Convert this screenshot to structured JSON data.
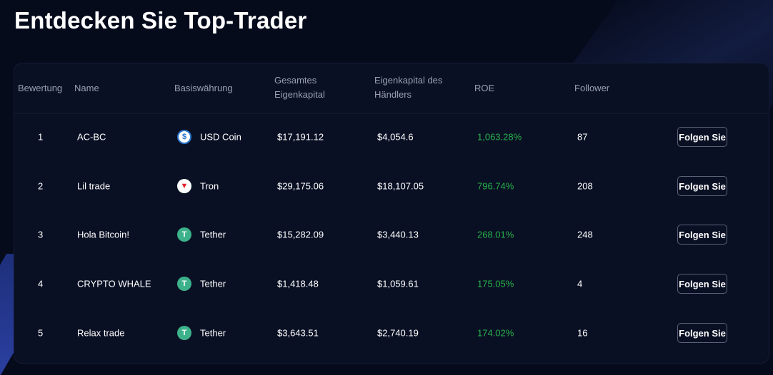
{
  "page": {
    "title": "Entdecken Sie Top-Trader"
  },
  "table": {
    "headers": {
      "rank": "Bewertung",
      "name": "Name",
      "base_currency": "Basiswährung",
      "total_equity_line1": "Gesamtes",
      "total_equity_line2": "Eigenkapital",
      "trader_equity_line1": "Eigenkapital des",
      "trader_equity_line2": "Händlers",
      "roe": "ROE",
      "followers": "Follower"
    },
    "rows": [
      {
        "rank": "1",
        "name": "AC-BC",
        "coin": "USD Coin",
        "coin_icon": "usd-coin-icon",
        "total_equity": "$17,191.12",
        "trader_equity": "$4,054.6",
        "roe": "1,063.28%",
        "followers": "87",
        "button": "Folgen Sie"
      },
      {
        "rank": "2",
        "name": "Lil trade",
        "coin": "Tron",
        "coin_icon": "tron-icon",
        "total_equity": "$29,175.06",
        "trader_equity": "$18,107.05",
        "roe": "796.74%",
        "followers": "208",
        "button": "Folgen Sie"
      },
      {
        "rank": "3",
        "name": "Hola Bitcoin!",
        "coin": "Tether",
        "coin_icon": "tether-icon",
        "total_equity": "$15,282.09",
        "trader_equity": "$3,440.13",
        "roe": "268.01%",
        "followers": "248",
        "button": "Folgen Sie"
      },
      {
        "rank": "4",
        "name": "CRYPTO WHALE",
        "coin": "Tether",
        "coin_icon": "tether-icon",
        "total_equity": "$1,418.48",
        "trader_equity": "$1,059.61",
        "roe": "175.05%",
        "followers": "4",
        "button": "Folgen Sie"
      },
      {
        "rank": "5",
        "name": "Relax trade",
        "coin": "Tether",
        "coin_icon": "tether-icon",
        "total_equity": "$3,643.51",
        "trader_equity": "$2,740.19",
        "roe": "174.02%",
        "followers": "16",
        "button": "Folgen Sie"
      }
    ]
  },
  "colors": {
    "background": "#060b1c",
    "panel": "#0a1024",
    "roe_positive": "#27b24a",
    "header_text": "#9aa0b4"
  }
}
